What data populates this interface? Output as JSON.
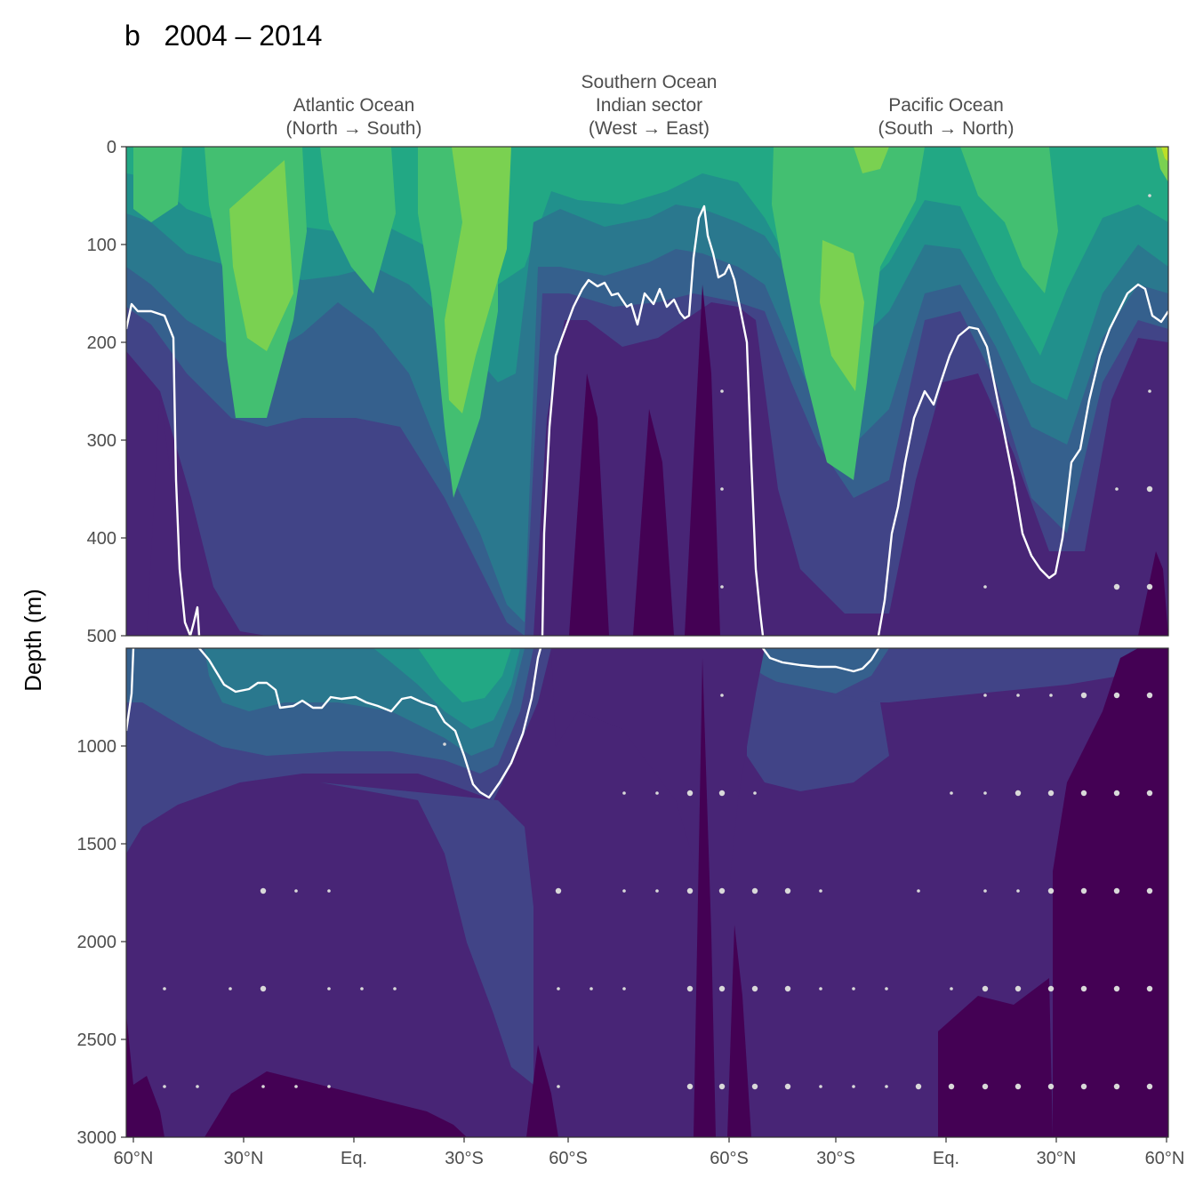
{
  "panel_title": "b   2004 – 2014",
  "ocean_labels": [
    {
      "lines": [
        "Atlantic Ocean",
        "(North → South)"
      ]
    },
    {
      "lines": [
        "Southern Ocean",
        "Indian sector",
        "(West → East)"
      ]
    },
    {
      "lines": [
        "Pacific Ocean",
        "(South → North)"
      ]
    }
  ],
  "colors": {
    "levels": [
      "#440154",
      "#482576",
      "#414487",
      "#35608d",
      "#2a788e",
      "#21908c",
      "#22a884",
      "#43bf71",
      "#7ad151",
      "#bddf26"
    ],
    "contour_line": "#ffffff",
    "stipple": "#d9d9d9",
    "axis_text": "#4d4d4d"
  },
  "chart_data": {
    "type": "heatmap",
    "title": "b   2004 – 2014",
    "ylabel": "Depth (m)",
    "xlabel": "",
    "ylim_upper": [
      0,
      500
    ],
    "ylim_lower": [
      500,
      3000
    ],
    "y_ticks_upper": [
      "0",
      "100",
      "200",
      "300",
      "400",
      "500"
    ],
    "y_ticks_lower": [
      "1000",
      "1500",
      "2000",
      "2500",
      "3000"
    ],
    "x_ticks": [
      "60°N",
      "30°N",
      "Eq.",
      "30°S",
      "60°S",
      "60°S",
      "30°S",
      "Eq.",
      "30°N",
      "60°N"
    ],
    "sections": [
      "Atlantic Ocean (North → South)",
      "Southern Ocean Indian sector (West → East)",
      "Pacific Ocean (South → North)"
    ],
    "colormap": "viridis",
    "grid": false,
    "legend": "none"
  }
}
